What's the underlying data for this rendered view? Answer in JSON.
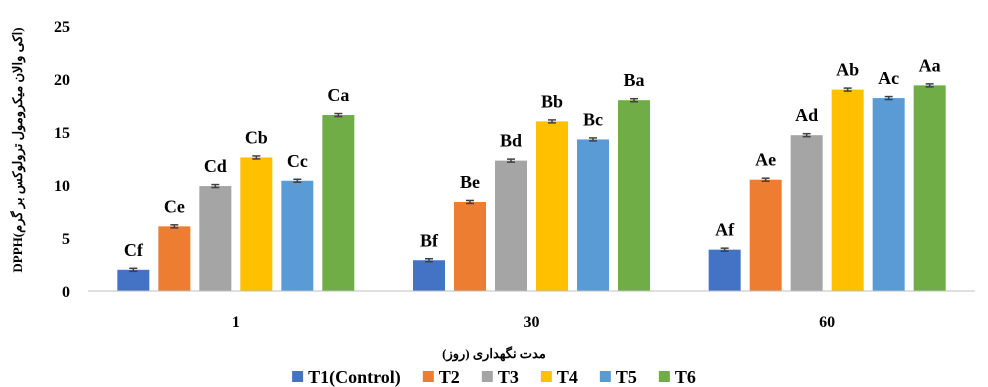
{
  "chart_data": {
    "type": "bar",
    "categories": [
      "1",
      "30",
      "60"
    ],
    "xlabel": "مدت نگهداری (روز)",
    "ylabel": "DPPH(اکی والان میکرومول ترولوکس بر گرم)",
    "ylim": [
      0,
      25
    ],
    "yticks": [
      0,
      5,
      10,
      15,
      20,
      25
    ],
    "grid": false,
    "error_bars": true,
    "legend": "bottom",
    "series": [
      {
        "name": "T1(Control)",
        "color": "#4472C4",
        "values": [
          2.0,
          2.9,
          3.9
        ],
        "labels": [
          "Cf",
          "Bf",
          "Af"
        ]
      },
      {
        "name": "T2",
        "color": "#ED7D31",
        "values": [
          6.1,
          8.4,
          10.5
        ],
        "labels": [
          "Ce",
          "Be",
          "Ae"
        ]
      },
      {
        "name": "T3",
        "color": "#A5A5A5",
        "values": [
          9.9,
          12.3,
          14.7
        ],
        "labels": [
          "Cd",
          "Bd",
          "Ad"
        ]
      },
      {
        "name": "T4",
        "color": "#FFC000",
        "values": [
          12.6,
          16.0,
          19.0
        ],
        "labels": [
          "Cb",
          "Bb",
          "Ab"
        ]
      },
      {
        "name": "T5",
        "color": "#5B9BD5",
        "values": [
          10.4,
          14.3,
          18.2
        ],
        "labels": [
          "Cc",
          "Bc",
          "Ac"
        ]
      },
      {
        "name": "T6",
        "color": "#70AD47",
        "values": [
          16.6,
          18.0,
          19.4
        ],
        "labels": [
          "Ca",
          "Ba",
          "Aa"
        ]
      }
    ]
  }
}
